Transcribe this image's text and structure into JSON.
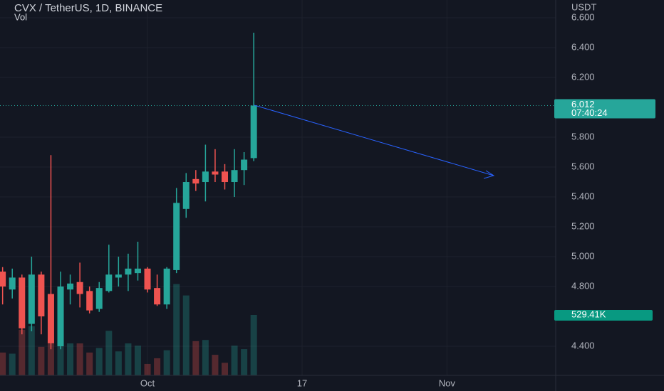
{
  "chart_data": {
    "type": "candlestick",
    "title": "CVX / TetherUS, 1D, BINANCE",
    "subtitle": "Vol",
    "y_axis_label": "USDT",
    "x": [
      -15,
      -14,
      -13,
      -12,
      -11,
      -10,
      -9,
      -8,
      -7,
      -6,
      -5,
      -4,
      -3,
      -2,
      -1,
      0,
      1,
      2,
      3,
      4,
      5,
      6,
      7,
      8,
      9,
      10,
      11
    ],
    "open": [
      4.9,
      4.78,
      4.86,
      4.55,
      4.88,
      4.75,
      4.4,
      4.78,
      4.83,
      4.77,
      4.65,
      4.77,
      4.86,
      4.88,
      4.89,
      4.92,
      4.79,
      4.68,
      4.91,
      5.32,
      5.52,
      5.5,
      5.57,
      5.57,
      5.5,
      5.58,
      5.66
    ],
    "high": [
      4.93,
      4.92,
      4.88,
      5.0,
      4.9,
      5.68,
      4.9,
      4.88,
      4.96,
      4.8,
      4.83,
      5.08,
      5.0,
      5.02,
      5.1,
      4.93,
      4.88,
      4.93,
      5.46,
      5.56,
      5.58,
      5.75,
      5.72,
      5.62,
      5.72,
      5.7,
      6.5
    ],
    "low": [
      4.68,
      4.72,
      4.48,
      4.5,
      4.48,
      4.38,
      4.38,
      4.68,
      4.66,
      4.62,
      4.63,
      4.76,
      4.8,
      4.77,
      4.84,
      4.76,
      4.67,
      4.65,
      4.89,
      5.26,
      5.44,
      5.37,
      5.5,
      5.45,
      5.4,
      5.48,
      5.64
    ],
    "close": [
      4.8,
      4.86,
      4.52,
      4.88,
      4.6,
      4.42,
      4.8,
      4.82,
      4.75,
      4.64,
      4.79,
      4.88,
      4.88,
      4.92,
      4.92,
      4.78,
      4.68,
      4.92,
      5.36,
      5.5,
      5.49,
      5.57,
      5.55,
      5.5,
      5.58,
      5.65,
      6.012
    ],
    "up_color": "#26a69a",
    "down_color": "#ef5350",
    "volume": {
      "name": "Vol",
      "values": [
        200,
        190,
        400,
        430,
        250,
        300,
        280,
        280,
        280,
        200,
        240,
        390,
        210,
        280,
        260,
        100,
        150,
        220,
        800,
        700,
        300,
        310,
        180,
        110,
        260,
        230,
        529.41
      ],
      "last_label": "529.41K",
      "ylim": [
        0,
        3288
      ]
    },
    "last_price_label": "6.012",
    "countdown": "07:40:24",
    "xlim": [
      -15.27,
      42.26
    ],
    "xticks": [
      {
        "value": 0,
        "label": "Oct"
      },
      {
        "value": 16,
        "label": "17"
      },
      {
        "value": 31,
        "label": "Nov"
      }
    ],
    "ylim": [
      4.205,
      6.719
    ],
    "yticks": [
      {
        "value": 6.6,
        "label": "6.600"
      },
      {
        "value": 6.4,
        "label": "6.400"
      },
      {
        "value": 6.2,
        "label": "6.200"
      },
      {
        "value": 5.8,
        "label": "5.800"
      },
      {
        "value": 5.6,
        "label": "5.600"
      },
      {
        "value": 5.4,
        "label": "5.400"
      },
      {
        "value": 5.2,
        "label": "5.200"
      },
      {
        "value": 5.0,
        "label": "5.000"
      },
      {
        "value": 4.8,
        "label": "4.800"
      },
      {
        "value": 4.4,
        "label": "4.400"
      }
    ],
    "grid": true
  }
}
